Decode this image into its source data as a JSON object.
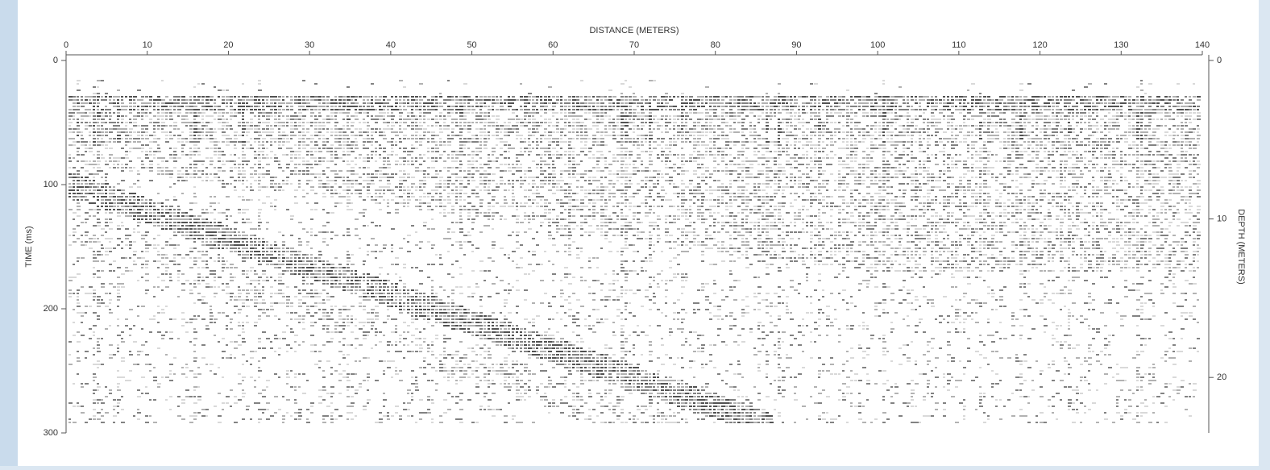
{
  "chart_data": {
    "type": "seismic",
    "title": "DISTANCE (METERS)",
    "y_label": "TIME (ms)",
    "y2_label": "DEPTH (METERS)",
    "xlim": [
      0,
      140
    ],
    "xticks": [
      0,
      10,
      20,
      30,
      40,
      50,
      60,
      70,
      80,
      90,
      100,
      110,
      120,
      130,
      140
    ],
    "ylim": [
      0,
      300
    ],
    "yticks": [
      0,
      100,
      200,
      300
    ],
    "y2lim": [
      0,
      23.5
    ],
    "y2ticks": [
      0,
      10,
      20
    ]
  }
}
